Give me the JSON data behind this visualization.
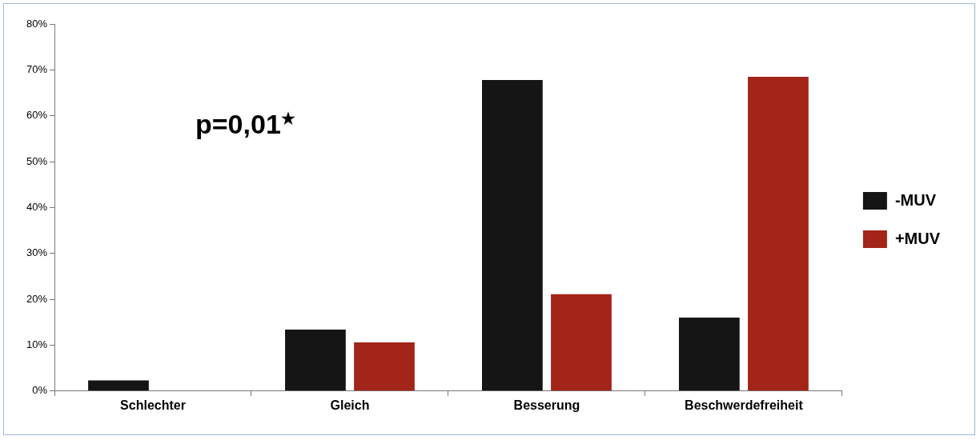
{
  "chart_data": {
    "type": "bar",
    "categories": [
      "Schlechter",
      "Gleich",
      "Besserung",
      "Beschwerdefreiheit"
    ],
    "series": [
      {
        "name": "-MUV",
        "color": "#151515",
        "values": [
          2.3,
          13.4,
          67.8,
          16.0
        ]
      },
      {
        "name": "+MUV",
        "color": "#a32418",
        "values": [
          0,
          10.6,
          21.1,
          68.5
        ]
      }
    ],
    "ylim": [
      0,
      80
    ],
    "yticks": [
      {
        "value": 0,
        "label": "0%"
      },
      {
        "value": 10,
        "label": "10%"
      },
      {
        "value": 20,
        "label": "20%"
      },
      {
        "value": 30,
        "label": "30%"
      },
      {
        "value": 40,
        "label": "40%"
      },
      {
        "value": 50,
        "label": "50%"
      },
      {
        "value": 60,
        "label": "60%"
      },
      {
        "value": 70,
        "label": "70%"
      },
      {
        "value": 80,
        "label": "80%"
      }
    ],
    "grid": false,
    "legend": "right",
    "annotations": [
      "p=0,01$^{★}$"
    ]
  }
}
